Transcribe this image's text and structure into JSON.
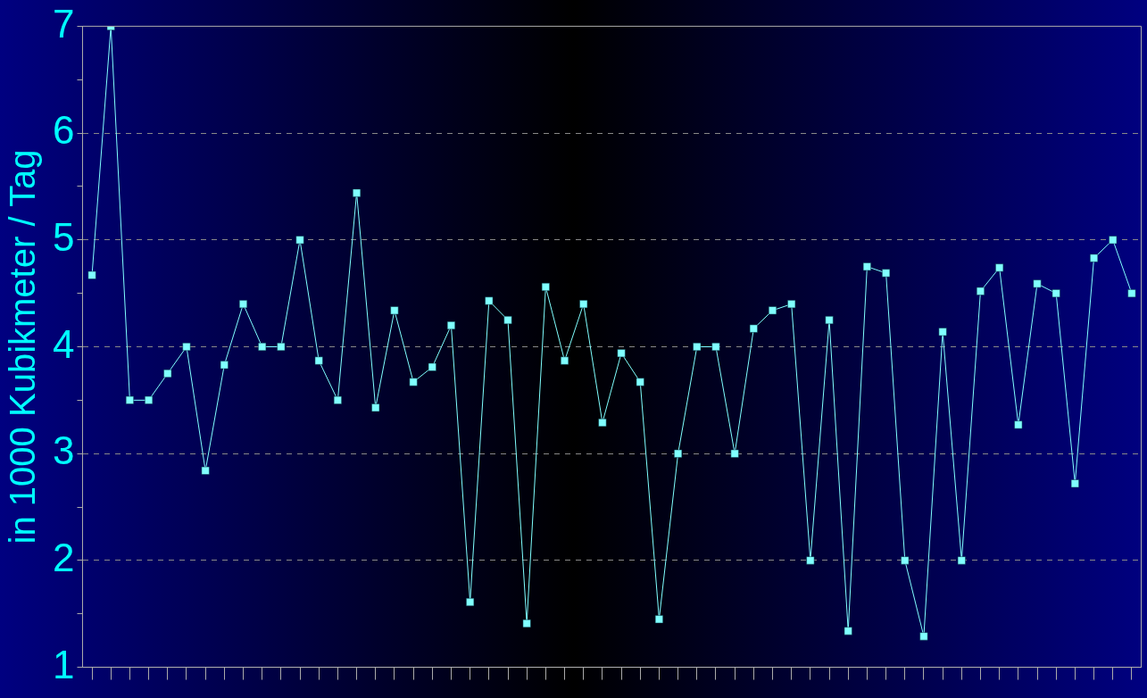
{
  "chart_data": {
    "type": "line",
    "ylabel": "in 1000 Kubikmeter / Tag",
    "categories": [
      null,
      null,
      null,
      null,
      null,
      null,
      null,
      null,
      null,
      null,
      null,
      null,
      null,
      null,
      null,
      null,
      null,
      null,
      null,
      null,
      null,
      null,
      null,
      null,
      null,
      null,
      null,
      null,
      null,
      null,
      null,
      null,
      null,
      null,
      null,
      null,
      null,
      null,
      null,
      null,
      null,
      null,
      null,
      null,
      null,
      null,
      null,
      null,
      null,
      null,
      null,
      null,
      null,
      null,
      null,
      null
    ],
    "series": [
      {
        "color": "#80ffff",
        "values": [
          4.67,
          7,
          3.5,
          3.5,
          3.75,
          4,
          2.84,
          3.83,
          4.4,
          4,
          4,
          5,
          3.87,
          3.5,
          5.44,
          3.43,
          4.34,
          3.67,
          3.81,
          4.2,
          1.61,
          4.43,
          4.25,
          1.41,
          4.56,
          3.87,
          4.4,
          3.29,
          3.94,
          3.67,
          1.45,
          3,
          4,
          4,
          3,
          4.17,
          4.34,
          4.4,
          2,
          4.25,
          1.34,
          4.75,
          4.69,
          2,
          1.29,
          4.14,
          2,
          4.52,
          4.74,
          3.27,
          4.59,
          4.5,
          2.72,
          4.83,
          5,
          4.5
        ]
      }
    ],
    "ylim": [
      1,
      7
    ],
    "yticks": [
      1,
      {
        "value": 1.5,
        "label": null
      },
      2,
      {
        "value": 2.5,
        "label": null
      },
      3,
      {
        "value": 3.5,
        "label": null
      },
      4,
      {
        "value": 4.5,
        "label": null
      },
      5,
      {
        "value": 5.5,
        "label": null
      },
      6,
      {
        "value": 6.5,
        "label": null
      },
      7
    ],
    "grid": "y",
    "marker": "square",
    "line_style": "solid",
    "legend": false
  }
}
